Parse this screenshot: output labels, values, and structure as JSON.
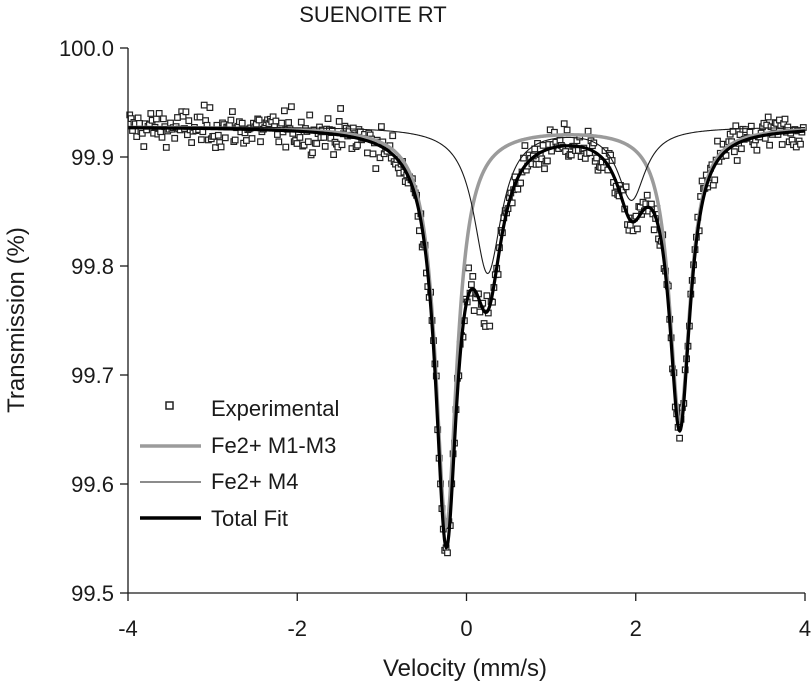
{
  "chart_data": {
    "type": "scatter",
    "title": "SUENOITE RT",
    "xlabel": "Velocity (mm/s)",
    "ylabel": "Transmission (%)",
    "xlim": [
      -4,
      4
    ],
    "ylim": [
      99.5,
      100.0
    ],
    "xticks": [
      -4,
      -2,
      0,
      2,
      4
    ],
    "yticks": [
      99.5,
      99.6,
      99.7,
      99.8,
      99.9,
      100.0
    ],
    "xtick_labels": [
      "-4",
      "-2",
      "0",
      "2",
      "4"
    ],
    "ytick_labels": [
      "99.5",
      "99.6",
      "99.7",
      "99.8",
      "99.9",
      "100.0"
    ],
    "grid": false,
    "legend_position": "lower-left",
    "baseline": 99.928,
    "series": [
      {
        "name": "Experimental",
        "kind": "points",
        "color": "#222222"
      },
      {
        "name": "Fe2+ M1-M3",
        "kind": "line",
        "color": "#9b9b9b",
        "components": [
          {
            "center": -0.24,
            "hwhm": 0.155,
            "depth": 0.366
          },
          {
            "center": 2.52,
            "hwhm": 0.15,
            "depth": 0.27
          }
        ]
      },
      {
        "name": "Fe2+ M4",
        "kind": "line",
        "color": "#1a1a1a",
        "components": [
          {
            "center": 0.25,
            "hwhm": 0.2,
            "depth": 0.134
          },
          {
            "center": 1.95,
            "hwhm": 0.2,
            "depth": 0.066
          }
        ]
      },
      {
        "name": "Total Fit",
        "kind": "line",
        "color": "#000000"
      }
    ]
  }
}
